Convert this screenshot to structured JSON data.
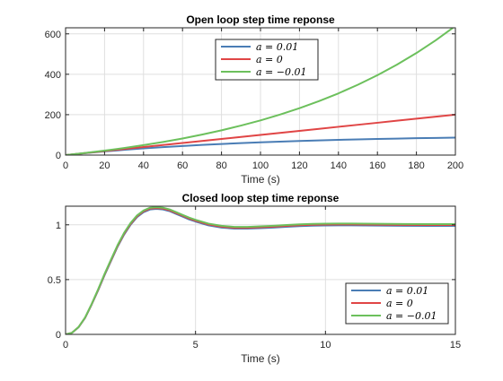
{
  "chart_data": [
    {
      "type": "line",
      "title": "Open loop step time reponse",
      "xlabel": "Time (s)",
      "ylabel": "",
      "xlim": [
        0,
        200
      ],
      "ylim": [
        0,
        630
      ],
      "xticks": [
        0,
        20,
        40,
        60,
        80,
        100,
        120,
        140,
        160,
        180,
        200
      ],
      "xtick_labels": [
        "0",
        "20",
        "40",
        "60",
        "80",
        "100",
        "120",
        "140",
        "160",
        "180",
        "200"
      ],
      "yticks": [
        0,
        200,
        400,
        600
      ],
      "ytick_labels": [
        "0",
        "200",
        "400",
        "600"
      ],
      "grid": true,
      "legend_position": "top-center",
      "x": [
        0,
        10,
        20,
        30,
        40,
        50,
        60,
        70,
        80,
        90,
        100,
        110,
        120,
        130,
        140,
        150,
        160,
        170,
        180,
        190,
        200
      ],
      "series": [
        {
          "name": "a = 0.01",
          "color": "#4a7db5",
          "values": [
            0,
            9.5,
            18.1,
            25.9,
            33.0,
            39.3,
            45.1,
            50.3,
            55.1,
            59.3,
            63.2,
            66.7,
            69.9,
            72.7,
            75.3,
            77.7,
            79.8,
            81.7,
            83.5,
            85.0,
            86.5
          ]
        },
        {
          "name": "a = 0",
          "color": "#e04545",
          "values": [
            0,
            10,
            20,
            30,
            40,
            50,
            60,
            70,
            80,
            90,
            100,
            110,
            120,
            130,
            140,
            150,
            160,
            170,
            180,
            190,
            200
          ]
        },
        {
          "name": "a = −0.01",
          "color": "#6cc05c",
          "values": [
            0,
            10.5,
            22.1,
            35.0,
            49.2,
            64.9,
            82.2,
            101.4,
            122.6,
            146.0,
            171.8,
            200.4,
            232.0,
            266.9,
            305.5,
            348.2,
            395.3,
            447.4,
            505.0,
            568.6,
            638.9
          ]
        }
      ]
    },
    {
      "type": "line",
      "title": "Closed loop step time reponse",
      "xlabel": "Time (s)",
      "ylabel": "",
      "xlim": [
        0,
        15
      ],
      "ylim": [
        0,
        1.17
      ],
      "xticks": [
        0,
        5,
        10,
        15
      ],
      "xtick_labels": [
        "0",
        "5",
        "10",
        "15"
      ],
      "yticks": [
        0,
        0.5,
        1
      ],
      "ytick_labels": [
        "0",
        "0.5",
        "1"
      ],
      "grid": true,
      "legend_position": "bottom-right",
      "x": [
        0,
        0.25,
        0.5,
        0.75,
        1,
        1.25,
        1.5,
        1.75,
        2,
        2.25,
        2.5,
        2.75,
        3,
        3.25,
        3.5,
        3.75,
        4,
        4.25,
        4.5,
        4.75,
        5,
        5.5,
        6,
        6.5,
        7,
        7.5,
        8,
        8.5,
        9,
        9.5,
        10,
        10.5,
        11,
        12,
        13,
        14,
        15
      ],
      "series": [
        {
          "name": "a = 0.01",
          "color": "#4a7db5",
          "values": [
            0,
            0.015,
            0.065,
            0.15,
            0.27,
            0.4,
            0.54,
            0.67,
            0.8,
            0.91,
            1.0,
            1.07,
            1.115,
            1.14,
            1.145,
            1.14,
            1.125,
            1.1,
            1.075,
            1.05,
            1.03,
            0.995,
            0.975,
            0.965,
            0.965,
            0.97,
            0.975,
            0.982,
            0.988,
            0.992,
            0.994,
            0.995,
            0.995,
            0.993,
            0.991,
            0.99,
            0.99
          ]
        },
        {
          "name": "a = 0",
          "color": "#e04545",
          "values": [
            0,
            0.015,
            0.066,
            0.152,
            0.273,
            0.405,
            0.546,
            0.677,
            0.807,
            0.918,
            1.008,
            1.078,
            1.123,
            1.148,
            1.153,
            1.148,
            1.133,
            1.108,
            1.083,
            1.058,
            1.038,
            1.003,
            0.983,
            0.973,
            0.973,
            0.978,
            0.983,
            0.99,
            0.996,
            1.0,
            1.002,
            1.003,
            1.003,
            1.001,
            0.999,
            0.998,
            0.998
          ]
        },
        {
          "name": "a = −0.01",
          "color": "#6cc05c",
          "values": [
            0,
            0.015,
            0.067,
            0.154,
            0.276,
            0.41,
            0.552,
            0.684,
            0.814,
            0.926,
            1.016,
            1.086,
            1.131,
            1.156,
            1.161,
            1.156,
            1.141,
            1.116,
            1.091,
            1.066,
            1.046,
            1.011,
            0.991,
            0.981,
            0.981,
            0.986,
            0.991,
            0.998,
            1.004,
            1.008,
            1.01,
            1.011,
            1.011,
            1.009,
            1.007,
            1.006,
            1.006
          ]
        }
      ]
    }
  ]
}
